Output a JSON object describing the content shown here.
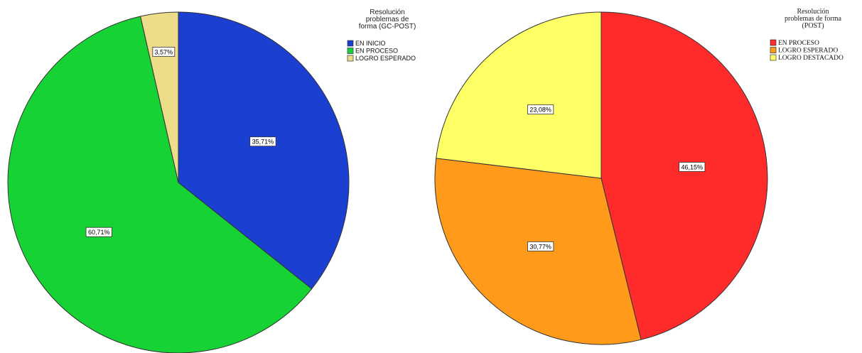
{
  "chart_data": [
    {
      "type": "pie",
      "legend_title_lines": [
        "Resolución",
        "problemas de",
        "forma (GC-POST)"
      ],
      "legend_placement": "top-right",
      "start_angle_deg": 0,
      "direction": "clockwise",
      "slices": [
        {
          "name": "EN INICIO",
          "value": 35.71,
          "label": "35,71%",
          "color": "#1a3fd1"
        },
        {
          "name": "EN PROCESO",
          "value": 60.71,
          "label": "60,71%",
          "color": "#17d235"
        },
        {
          "name": "LOGRO ESPERADO",
          "value": 3.57,
          "label": "3,57%",
          "color": "#eedd88"
        }
      ]
    },
    {
      "type": "pie",
      "legend_title_lines": [
        "Resolución",
        "problemas de forma",
        "(POST)"
      ],
      "legend_placement": "top-right",
      "start_angle_deg": 0,
      "direction": "clockwise",
      "slices": [
        {
          "name": "EN PROCESO",
          "value": 46.15,
          "label": "46,15%",
          "color": "#ff2a2a"
        },
        {
          "name": "LOGRO ESPERADO",
          "value": 30.77,
          "label": "30,77%",
          "color": "#ff9a1a"
        },
        {
          "name": "LOGRO DESTACADO",
          "value": 23.08,
          "label": "23,08%",
          "color": "#ffff66"
        }
      ]
    }
  ]
}
